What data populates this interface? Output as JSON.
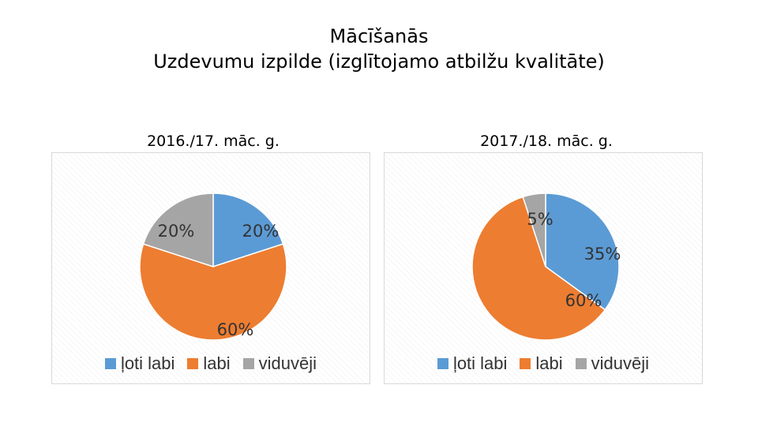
{
  "page": {
    "title_line1": "Mācīšanās",
    "title_line2": "Uzdevumu izpilde (izglītojamo atbilžu kvalitāte)"
  },
  "legend_labels": [
    "ļoti labi",
    "labi",
    "viduvēji"
  ],
  "colors": {
    "loti_labi": "#5B9BD5",
    "labi": "#ED7D31",
    "viduveji": "#A5A5A5"
  },
  "chart_data": [
    {
      "type": "pie",
      "title": "2016./17. māc. g.",
      "categories": [
        "ļoti labi",
        "labi",
        "viduvēji"
      ],
      "values": [
        20,
        60,
        20
      ],
      "value_labels": [
        "20%",
        "60%",
        "20%"
      ],
      "colors": [
        "#5B9BD5",
        "#ED7D31",
        "#A5A5A5"
      ],
      "legend": "bottom"
    },
    {
      "type": "pie",
      "title": "2017./18. māc. g.",
      "categories": [
        "ļoti labi",
        "labi",
        "viduvēji"
      ],
      "values": [
        35,
        60,
        5
      ],
      "value_labels": [
        "35%",
        "60%",
        "5%"
      ],
      "colors": [
        "#5B9BD5",
        "#ED7D31",
        "#A5A5A5"
      ],
      "legend": "bottom"
    }
  ]
}
